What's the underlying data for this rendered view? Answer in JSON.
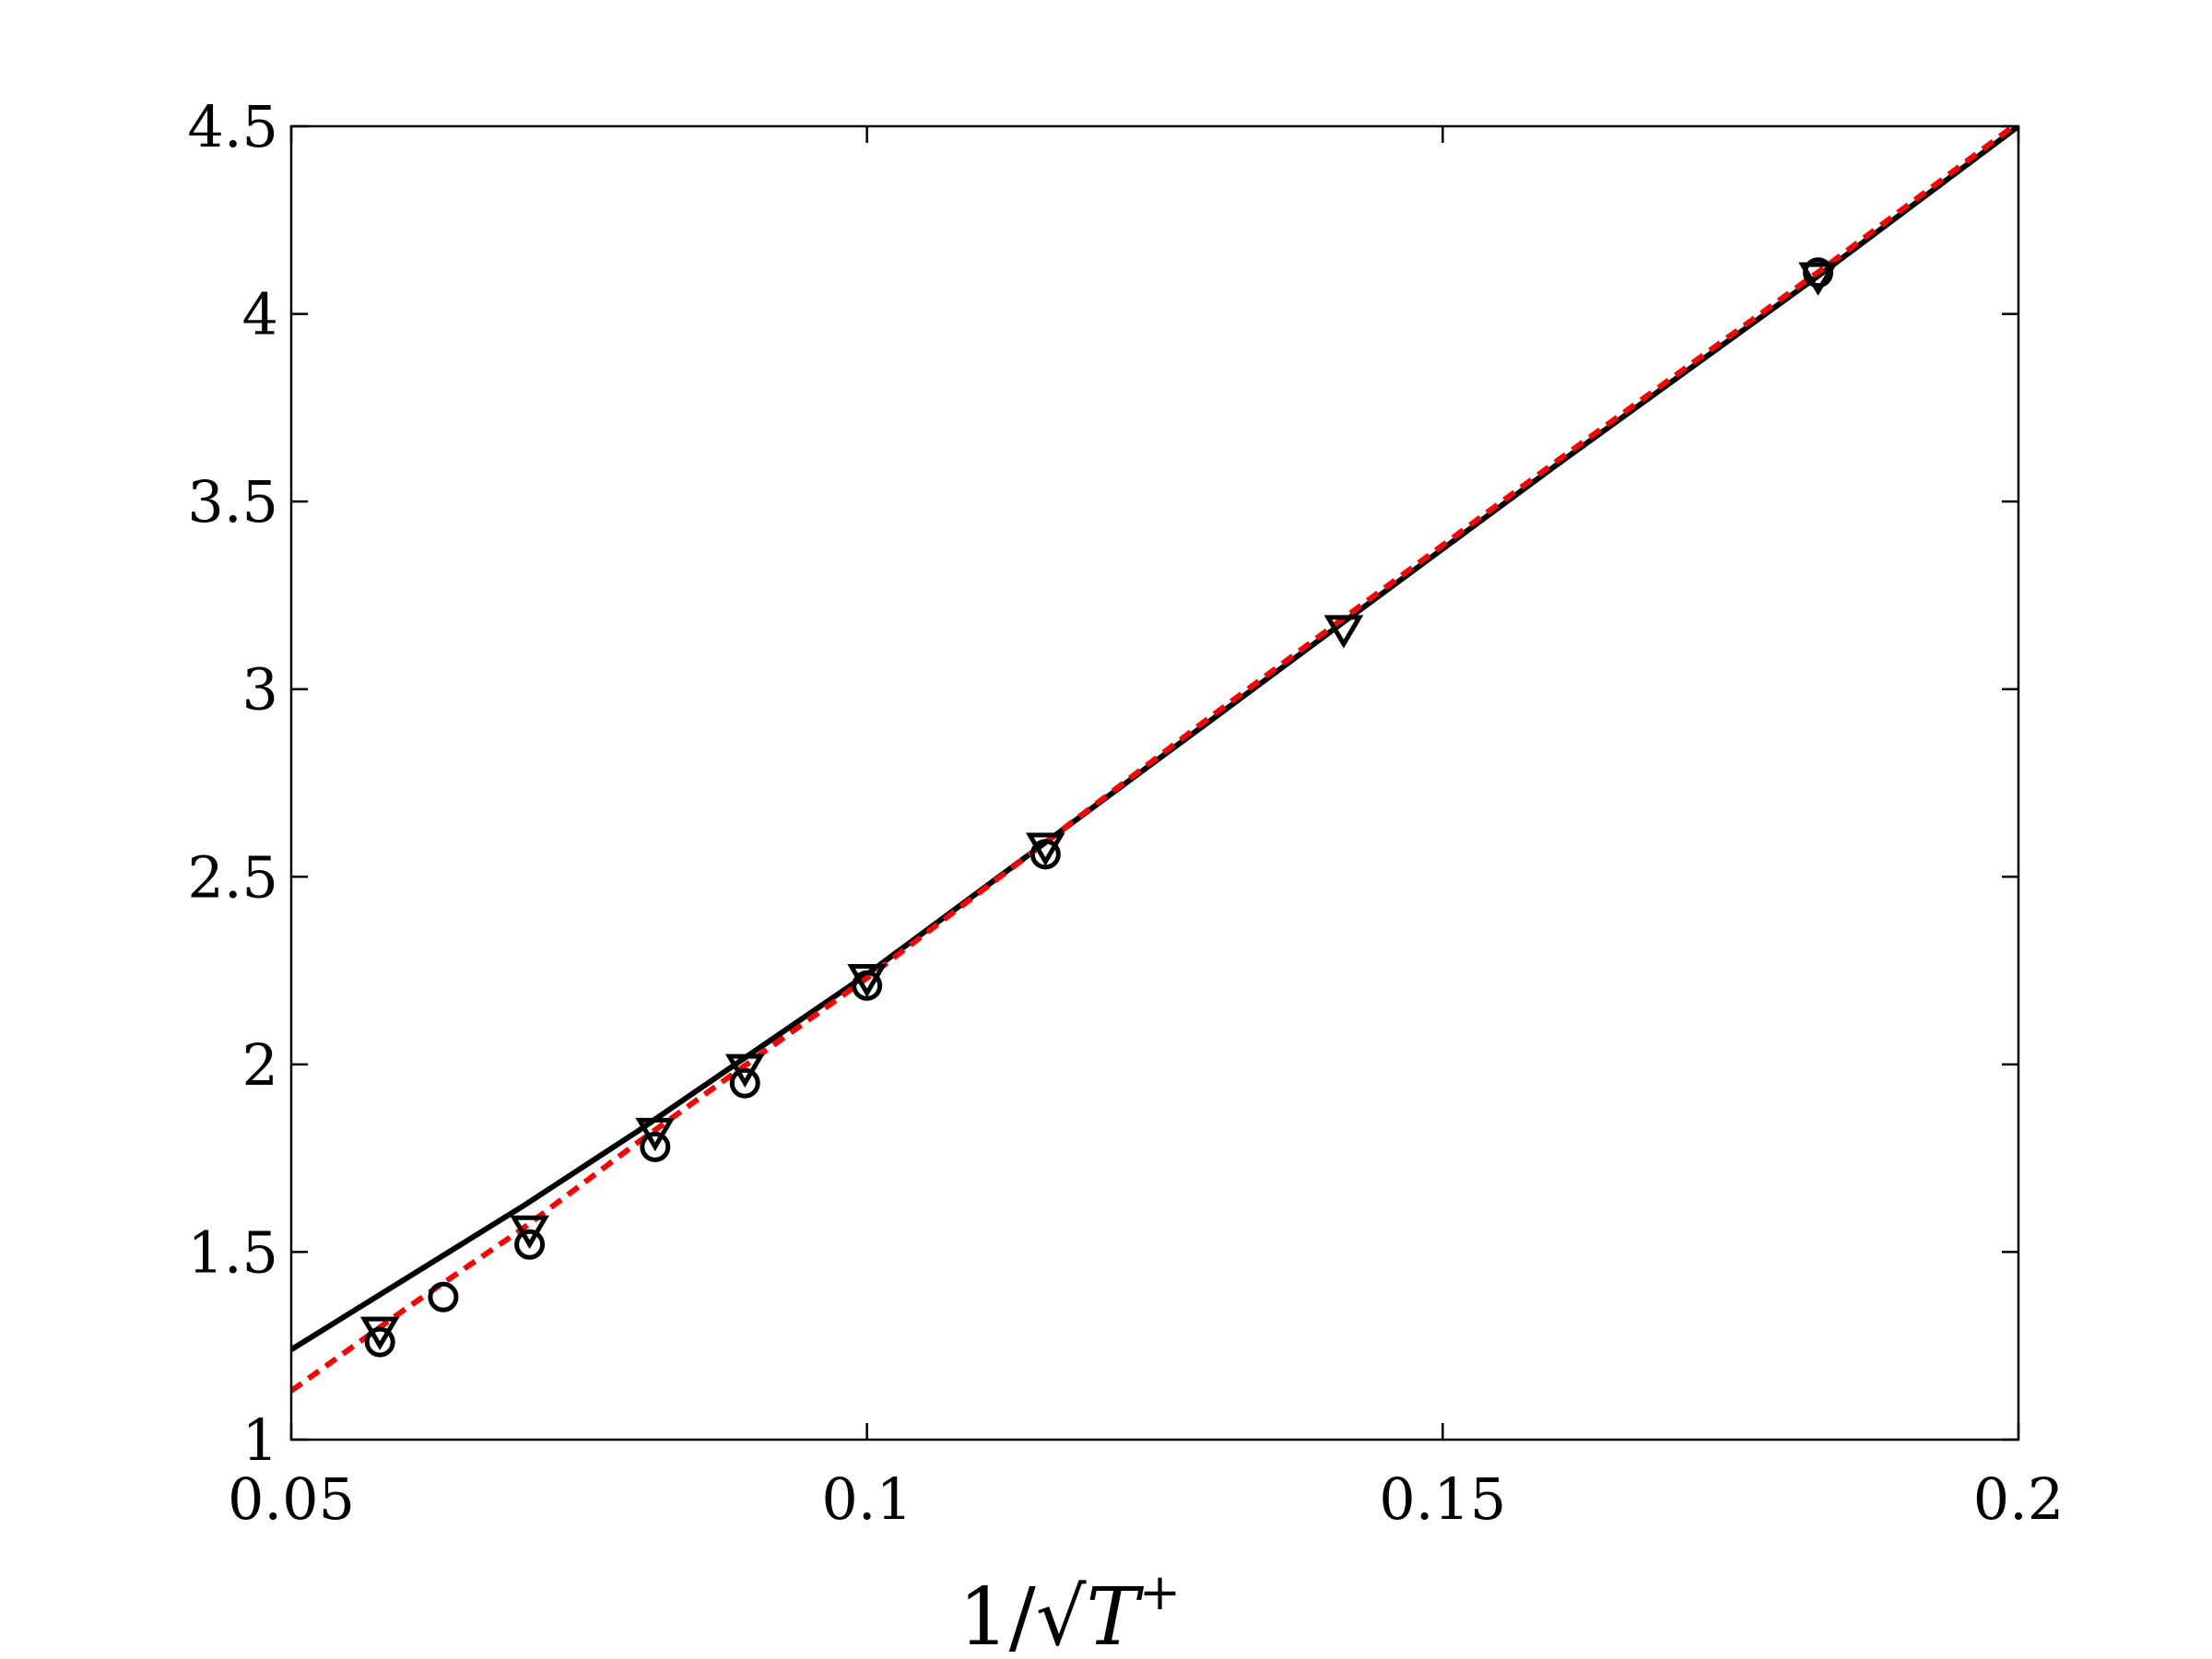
{
  "chart_data": {
    "type": "scatter",
    "title": "",
    "xlabel": "1/√T⁺",
    "xlabel_parts": {
      "numerator": "1/",
      "sqrt_symbol": "√",
      "variable": "T",
      "superscript": "+"
    },
    "ylabel": "",
    "xlim": [
      0.05,
      0.2
    ],
    "ylim": [
      1,
      4.5
    ],
    "xticks": [
      0.05,
      0.1,
      0.15,
      0.2
    ],
    "xtick_labels": [
      "0.05",
      "0.1",
      "0.15",
      "0.2"
    ],
    "yticks": [
      1,
      1.5,
      2,
      2.5,
      3,
      3.5,
      4,
      4.5
    ],
    "ytick_labels": [
      "1",
      "1.5",
      "2",
      "2.5",
      "3",
      "3.5",
      "4",
      "4.5"
    ],
    "grid": false,
    "legend": "none",
    "series": [
      {
        "kind": "line",
        "style": "solid",
        "color": "#000000",
        "x": [
          0.05,
          0.06,
          0.07,
          0.08,
          0.09,
          0.1,
          0.115,
          0.13,
          0.141,
          0.16,
          0.183,
          0.2
        ],
        "y": [
          1.24,
          1.43,
          1.62,
          1.82,
          2.03,
          2.24,
          2.58,
          2.92,
          3.17,
          3.6,
          4.11,
          4.5
        ]
      },
      {
        "kind": "line",
        "style": "dashed",
        "color": "#ff0000",
        "x": [
          0.05,
          0.06,
          0.07,
          0.08,
          0.09,
          0.1,
          0.115,
          0.13,
          0.141,
          0.16,
          0.183,
          0.2
        ],
        "y": [
          1.13,
          1.35,
          1.56,
          1.79,
          2.01,
          2.23,
          2.58,
          2.93,
          3.18,
          3.61,
          4.12,
          4.51
        ]
      },
      {
        "kind": "markers",
        "marker": "triangle-down",
        "color": "#000000",
        "x": [
          0.0577,
          0.0707,
          0.0816,
          0.0894,
          0.1,
          0.1155,
          0.1414,
          0.1826
        ],
        "y": [
          1.29,
          1.56,
          1.82,
          1.99,
          2.23,
          2.58,
          3.16,
          4.1
        ]
      },
      {
        "kind": "markers",
        "marker": "circle",
        "color": "#000000",
        "x": [
          0.0577,
          0.0632,
          0.0707,
          0.0816,
          0.0894,
          0.1,
          0.1155,
          0.1826
        ],
        "y": [
          1.26,
          1.38,
          1.52,
          1.78,
          1.95,
          2.21,
          2.56,
          4.11
        ]
      }
    ]
  }
}
